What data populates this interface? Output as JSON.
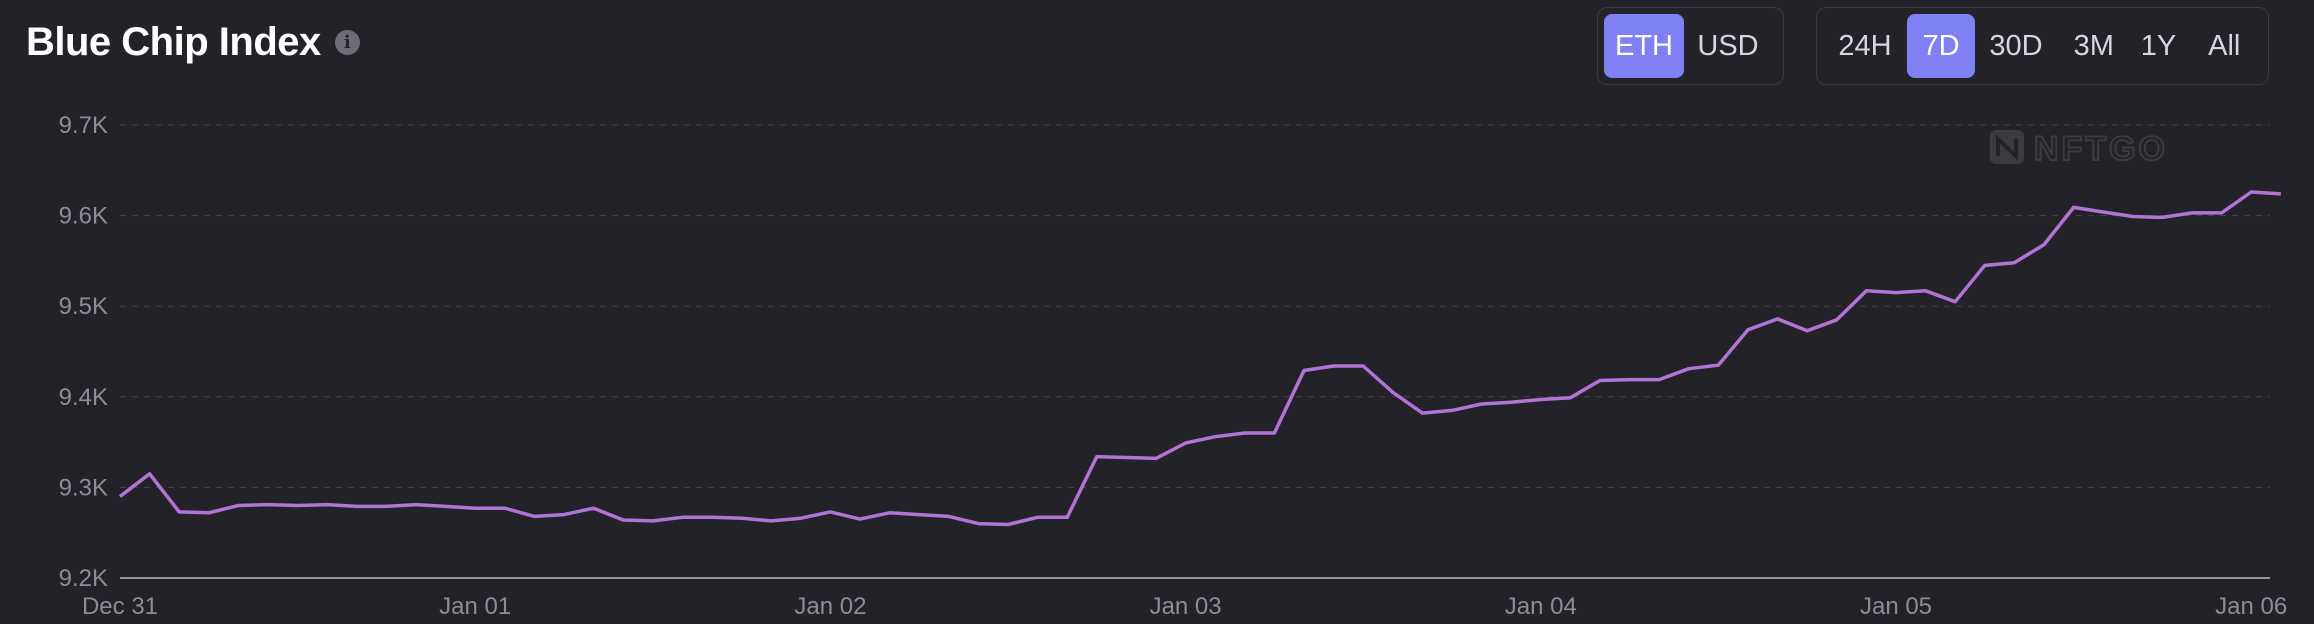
{
  "header": {
    "title": "Blue Chip Index",
    "info_icon": "info-icon"
  },
  "currency_toggle": {
    "options": [
      "ETH",
      "USD"
    ],
    "selected": "ETH"
  },
  "range_toggle": {
    "options": [
      "24H",
      "7D",
      "30D",
      "3M",
      "1Y",
      "All"
    ],
    "selected": "7D"
  },
  "watermark": "NFTGO",
  "colors": {
    "background": "#232228",
    "line": "#b174d6",
    "active_button": "#7f80f3",
    "grid": "#45444c"
  },
  "chart_data": {
    "type": "line",
    "title": "",
    "xlabel": "",
    "ylabel": "",
    "ylim": [
      9200,
      9700
    ],
    "y_ticks": [
      9200,
      9300,
      9400,
      9500,
      9600,
      9700
    ],
    "y_tick_labels": [
      "9.2K",
      "9.3K",
      "9.4K",
      "9.5K",
      "9.6K",
      "9.7K"
    ],
    "x_ticks": [
      0,
      12,
      24,
      36,
      48,
      60,
      72
    ],
    "x_tick_labels": [
      "Dec 31",
      "Jan 01",
      "Jan 02",
      "Jan 03",
      "Jan 04",
      "Jan 05",
      "Jan 06"
    ],
    "grid": true,
    "series": [
      {
        "values": [
          9290,
          9315,
          9273,
          9272,
          9280,
          9281,
          9280,
          9281,
          9279,
          9279,
          9281,
          9279,
          9277,
          9277,
          9268,
          9270,
          9277,
          9264,
          9263,
          9267,
          9267,
          9266,
          9263,
          9266,
          9273,
          9265,
          9272,
          9270,
          9268,
          9260,
          9259,
          9267,
          9267,
          9334,
          9333,
          9332,
          9349,
          9356,
          9360,
          9360,
          9429,
          9434,
          9434,
          9405,
          9382,
          9385,
          9392,
          9394,
          9397,
          9399,
          9418,
          9419,
          9419,
          9431,
          9435,
          9474,
          9486,
          9473,
          9485,
          9517,
          9515,
          9517,
          9505,
          9545,
          9548,
          9568,
          9609,
          9604,
          9599,
          9598,
          9603,
          9603,
          9626,
          9624
        ]
      }
    ]
  }
}
